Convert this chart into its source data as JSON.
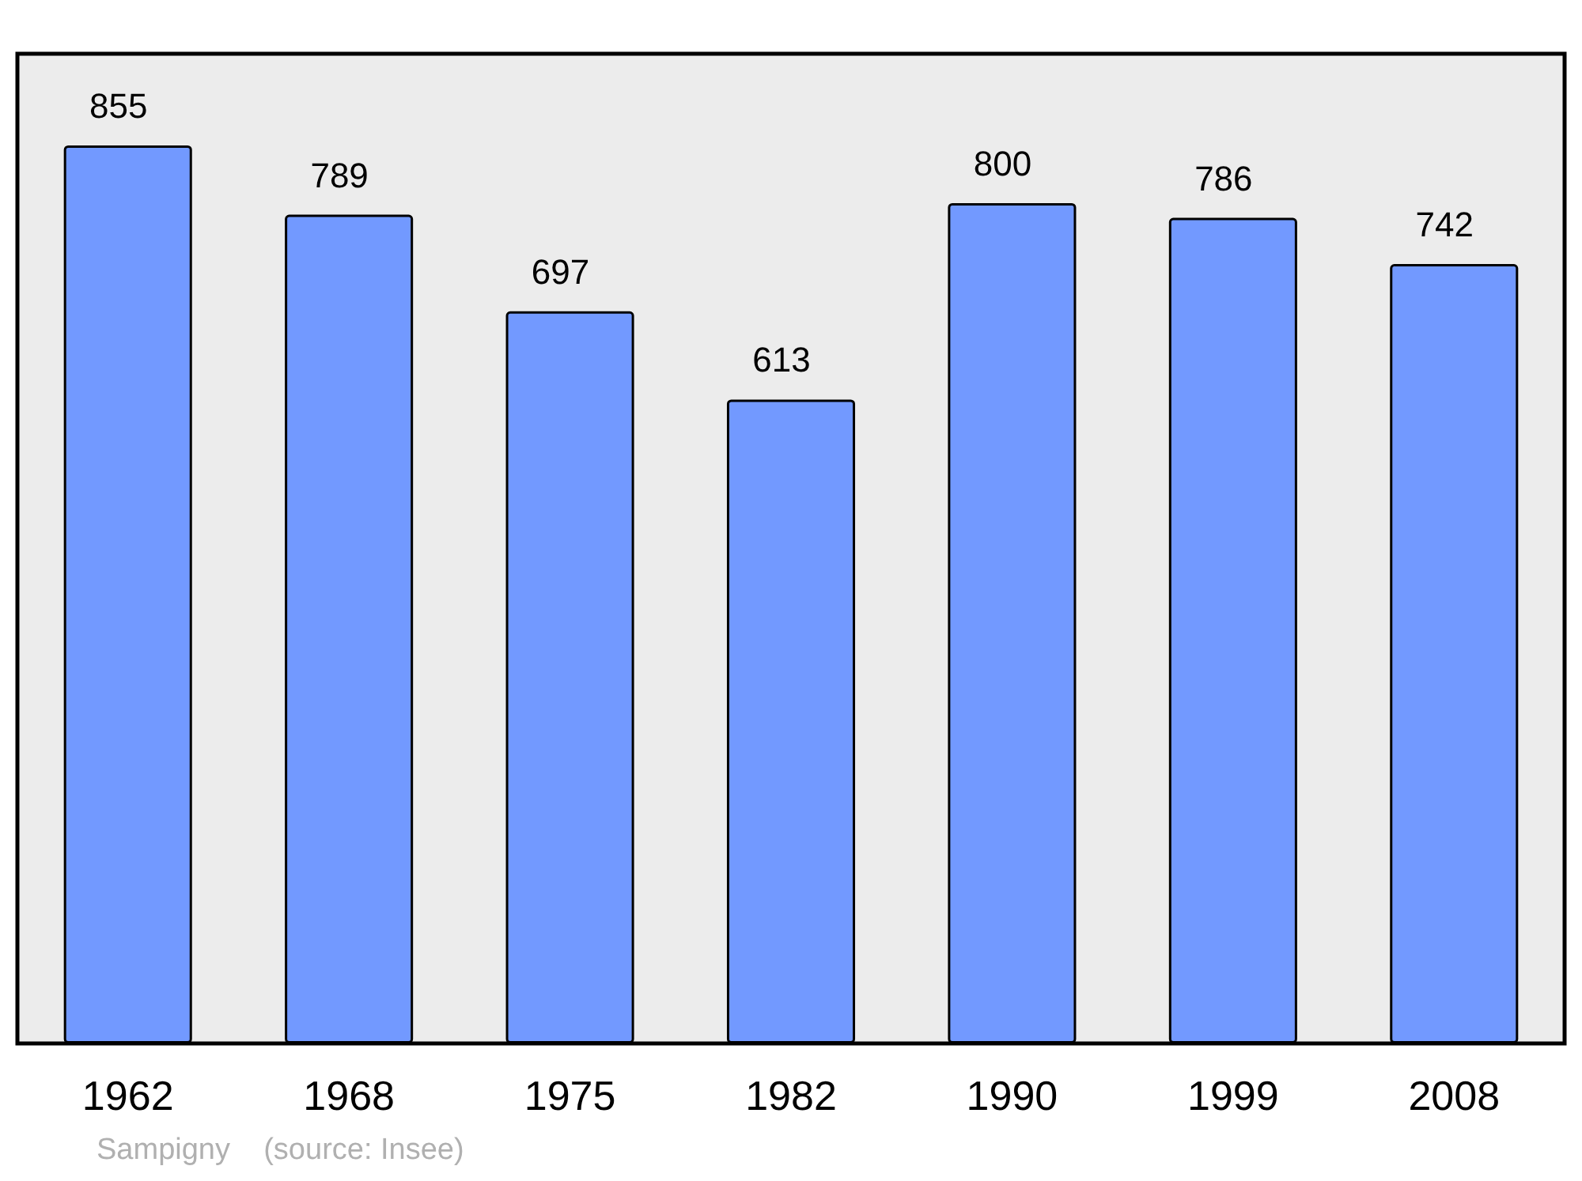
{
  "chart_data": {
    "type": "bar",
    "categories": [
      "1962",
      "1968",
      "1975",
      "1982",
      "1990",
      "1999",
      "2008"
    ],
    "values": [
      855,
      789,
      697,
      613,
      800,
      786,
      742
    ],
    "color": "#7299ff",
    "data_labels": true,
    "annotations": [
      "Sampigny    (source: Insee)"
    ]
  }
}
